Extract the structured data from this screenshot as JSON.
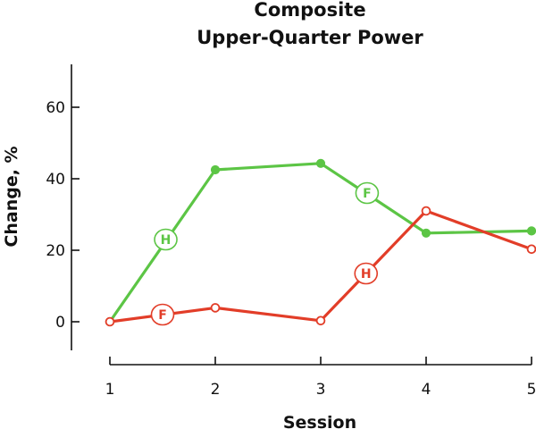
{
  "colors": {
    "green": "#5cc545",
    "red": "#e23d28",
    "axis": "#111111"
  },
  "chart_data": {
    "type": "line",
    "title": [
      "Composite",
      "Upper-Quarter Power"
    ],
    "xlabel": "Session",
    "ylabel": "Change, %",
    "x": [
      1,
      2,
      3,
      4,
      5
    ],
    "xticks": [
      "1",
      "2",
      "3",
      "4",
      "5"
    ],
    "yticks": [
      0,
      20,
      40,
      60
    ],
    "ylim": [
      -8,
      72
    ],
    "xlim": [
      1,
      5
    ],
    "series": [
      {
        "color": "#5cc545",
        "marker": "filled-circle",
        "values": [
          0,
          42.5,
          44.3,
          24.8,
          25.4
        ]
      },
      {
        "color": "#e23d28",
        "marker": "open-circle",
        "values": [
          0,
          3.9,
          0.3,
          31,
          20.3
        ]
      }
    ],
    "annotations": [
      {
        "label": "H",
        "x": 1.53,
        "y": 23,
        "color": "#5cc545"
      },
      {
        "label": "F",
        "x": 3.44,
        "y": 36,
        "color": "#5cc545"
      },
      {
        "label": "F",
        "x": 1.5,
        "y": 2,
        "color": "#e23d28"
      },
      {
        "label": "H",
        "x": 3.43,
        "y": 13.5,
        "color": "#e23d28"
      }
    ]
  }
}
